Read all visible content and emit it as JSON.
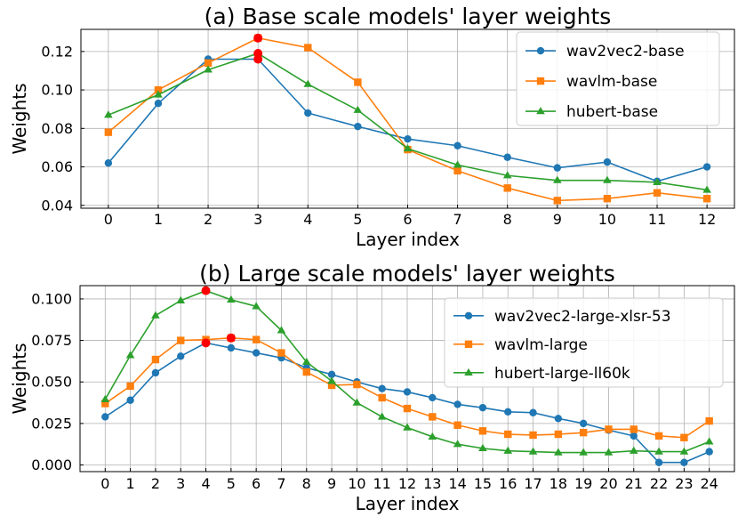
{
  "colors": {
    "blue": "#1f77b4",
    "orange": "#ff7f0e",
    "green": "#2ca02c",
    "highlight": "#ff0000"
  },
  "chart_data": [
    {
      "type": "line",
      "title": "(a) Base scale models' layer weights",
      "xlabel": "Layer index",
      "ylabel": "Weights",
      "x": [
        0,
        1,
        2,
        3,
        4,
        5,
        6,
        7,
        8,
        9,
        10,
        11,
        12
      ],
      "xtick_labels": [
        "0",
        "1",
        "2",
        "3",
        "4",
        "5",
        "6",
        "7",
        "8",
        "9",
        "10",
        "11",
        "12"
      ],
      "ytick_values": [
        0.04,
        0.06,
        0.08,
        0.1,
        0.12
      ],
      "ytick_labels": [
        "0.04",
        "0.06",
        "0.08",
        "0.10",
        "0.12"
      ],
      "xlim": [
        -0.55,
        12.55
      ],
      "ylim": [
        0.0385,
        0.1315
      ],
      "grid": true,
      "legend_position": "top-right",
      "series": [
        {
          "name": "wav2vec2-base",
          "color": "#1f77b4",
          "marker": "circle",
          "values": [
            0.062,
            0.093,
            0.116,
            0.116,
            0.088,
            0.081,
            0.0745,
            0.071,
            0.065,
            0.0595,
            0.0625,
            0.0525,
            0.06
          ]
        },
        {
          "name": "wavlm-base",
          "color": "#ff7f0e",
          "marker": "square",
          "values": [
            0.078,
            0.1,
            0.114,
            0.127,
            0.122,
            0.104,
            0.069,
            0.058,
            0.049,
            0.0425,
            0.0435,
            0.0465,
            0.0435
          ]
        },
        {
          "name": "hubert-base",
          "color": "#2ca02c",
          "marker": "triangle",
          "values": [
            0.087,
            0.0975,
            0.1105,
            0.119,
            0.103,
            0.0895,
            0.0695,
            0.061,
            0.0555,
            0.053,
            0.053,
            0.052,
            0.048
          ]
        }
      ],
      "highlights": [
        {
          "x": 3,
          "y": 0.127
        },
        {
          "x": 3,
          "y": 0.119
        },
        {
          "x": 3,
          "y": 0.116
        }
      ]
    },
    {
      "type": "line",
      "title": "(b) Large scale models' layer weights",
      "xlabel": "Layer index",
      "ylabel": "Weights",
      "x": [
        0,
        1,
        2,
        3,
        4,
        5,
        6,
        7,
        8,
        9,
        10,
        11,
        12,
        13,
        14,
        15,
        16,
        17,
        18,
        19,
        20,
        21,
        22,
        23,
        24
      ],
      "xtick_labels": [
        "0",
        "1",
        "2",
        "3",
        "4",
        "5",
        "6",
        "7",
        "8",
        "9",
        "10",
        "11",
        "12",
        "13",
        "14",
        "15",
        "16",
        "17",
        "18",
        "19",
        "20",
        "21",
        "22",
        "23",
        "24"
      ],
      "ytick_values": [
        0.0,
        0.025,
        0.05,
        0.075,
        0.1
      ],
      "ytick_labels": [
        "0.000",
        "0.025",
        "0.050",
        "0.075",
        "0.100"
      ],
      "xlim": [
        -1.0,
        25.0
      ],
      "ylim": [
        -0.004,
        0.108
      ],
      "grid": true,
      "legend_position": "top-right",
      "series": [
        {
          "name": "wav2vec2-large-xlsr-53",
          "color": "#1f77b4",
          "marker": "circle",
          "values": [
            0.029,
            0.039,
            0.0555,
            0.0655,
            0.0735,
            0.0705,
            0.0675,
            0.0645,
            0.0585,
            0.0545,
            0.05,
            0.046,
            0.044,
            0.0405,
            0.0365,
            0.0345,
            0.032,
            0.0315,
            0.028,
            0.025,
            0.021,
            0.0175,
            0.0015,
            0.0015,
            0.008
          ]
        },
        {
          "name": "wavlm-large",
          "color": "#ff7f0e",
          "marker": "square",
          "values": [
            0.037,
            0.0475,
            0.0635,
            0.075,
            0.0755,
            0.0765,
            0.0755,
            0.0675,
            0.056,
            0.048,
            0.0485,
            0.0405,
            0.034,
            0.029,
            0.024,
            0.0205,
            0.0185,
            0.018,
            0.0185,
            0.0195,
            0.0215,
            0.0215,
            0.0175,
            0.0165,
            0.0265
          ]
        },
        {
          "name": "hubert-large-ll60k",
          "color": "#2ca02c",
          "marker": "triangle",
          "values": [
            0.0395,
            0.066,
            0.09,
            0.099,
            0.105,
            0.0995,
            0.0955,
            0.081,
            0.062,
            0.0505,
            0.0375,
            0.029,
            0.0225,
            0.017,
            0.0125,
            0.01,
            0.0085,
            0.008,
            0.0075,
            0.0075,
            0.0075,
            0.0085,
            0.008,
            0.008,
            0.014
          ]
        }
      ],
      "highlights": [
        {
          "x": 4,
          "y": 0.105
        },
        {
          "x": 5,
          "y": 0.0765
        },
        {
          "x": 4,
          "y": 0.0735
        }
      ]
    }
  ]
}
